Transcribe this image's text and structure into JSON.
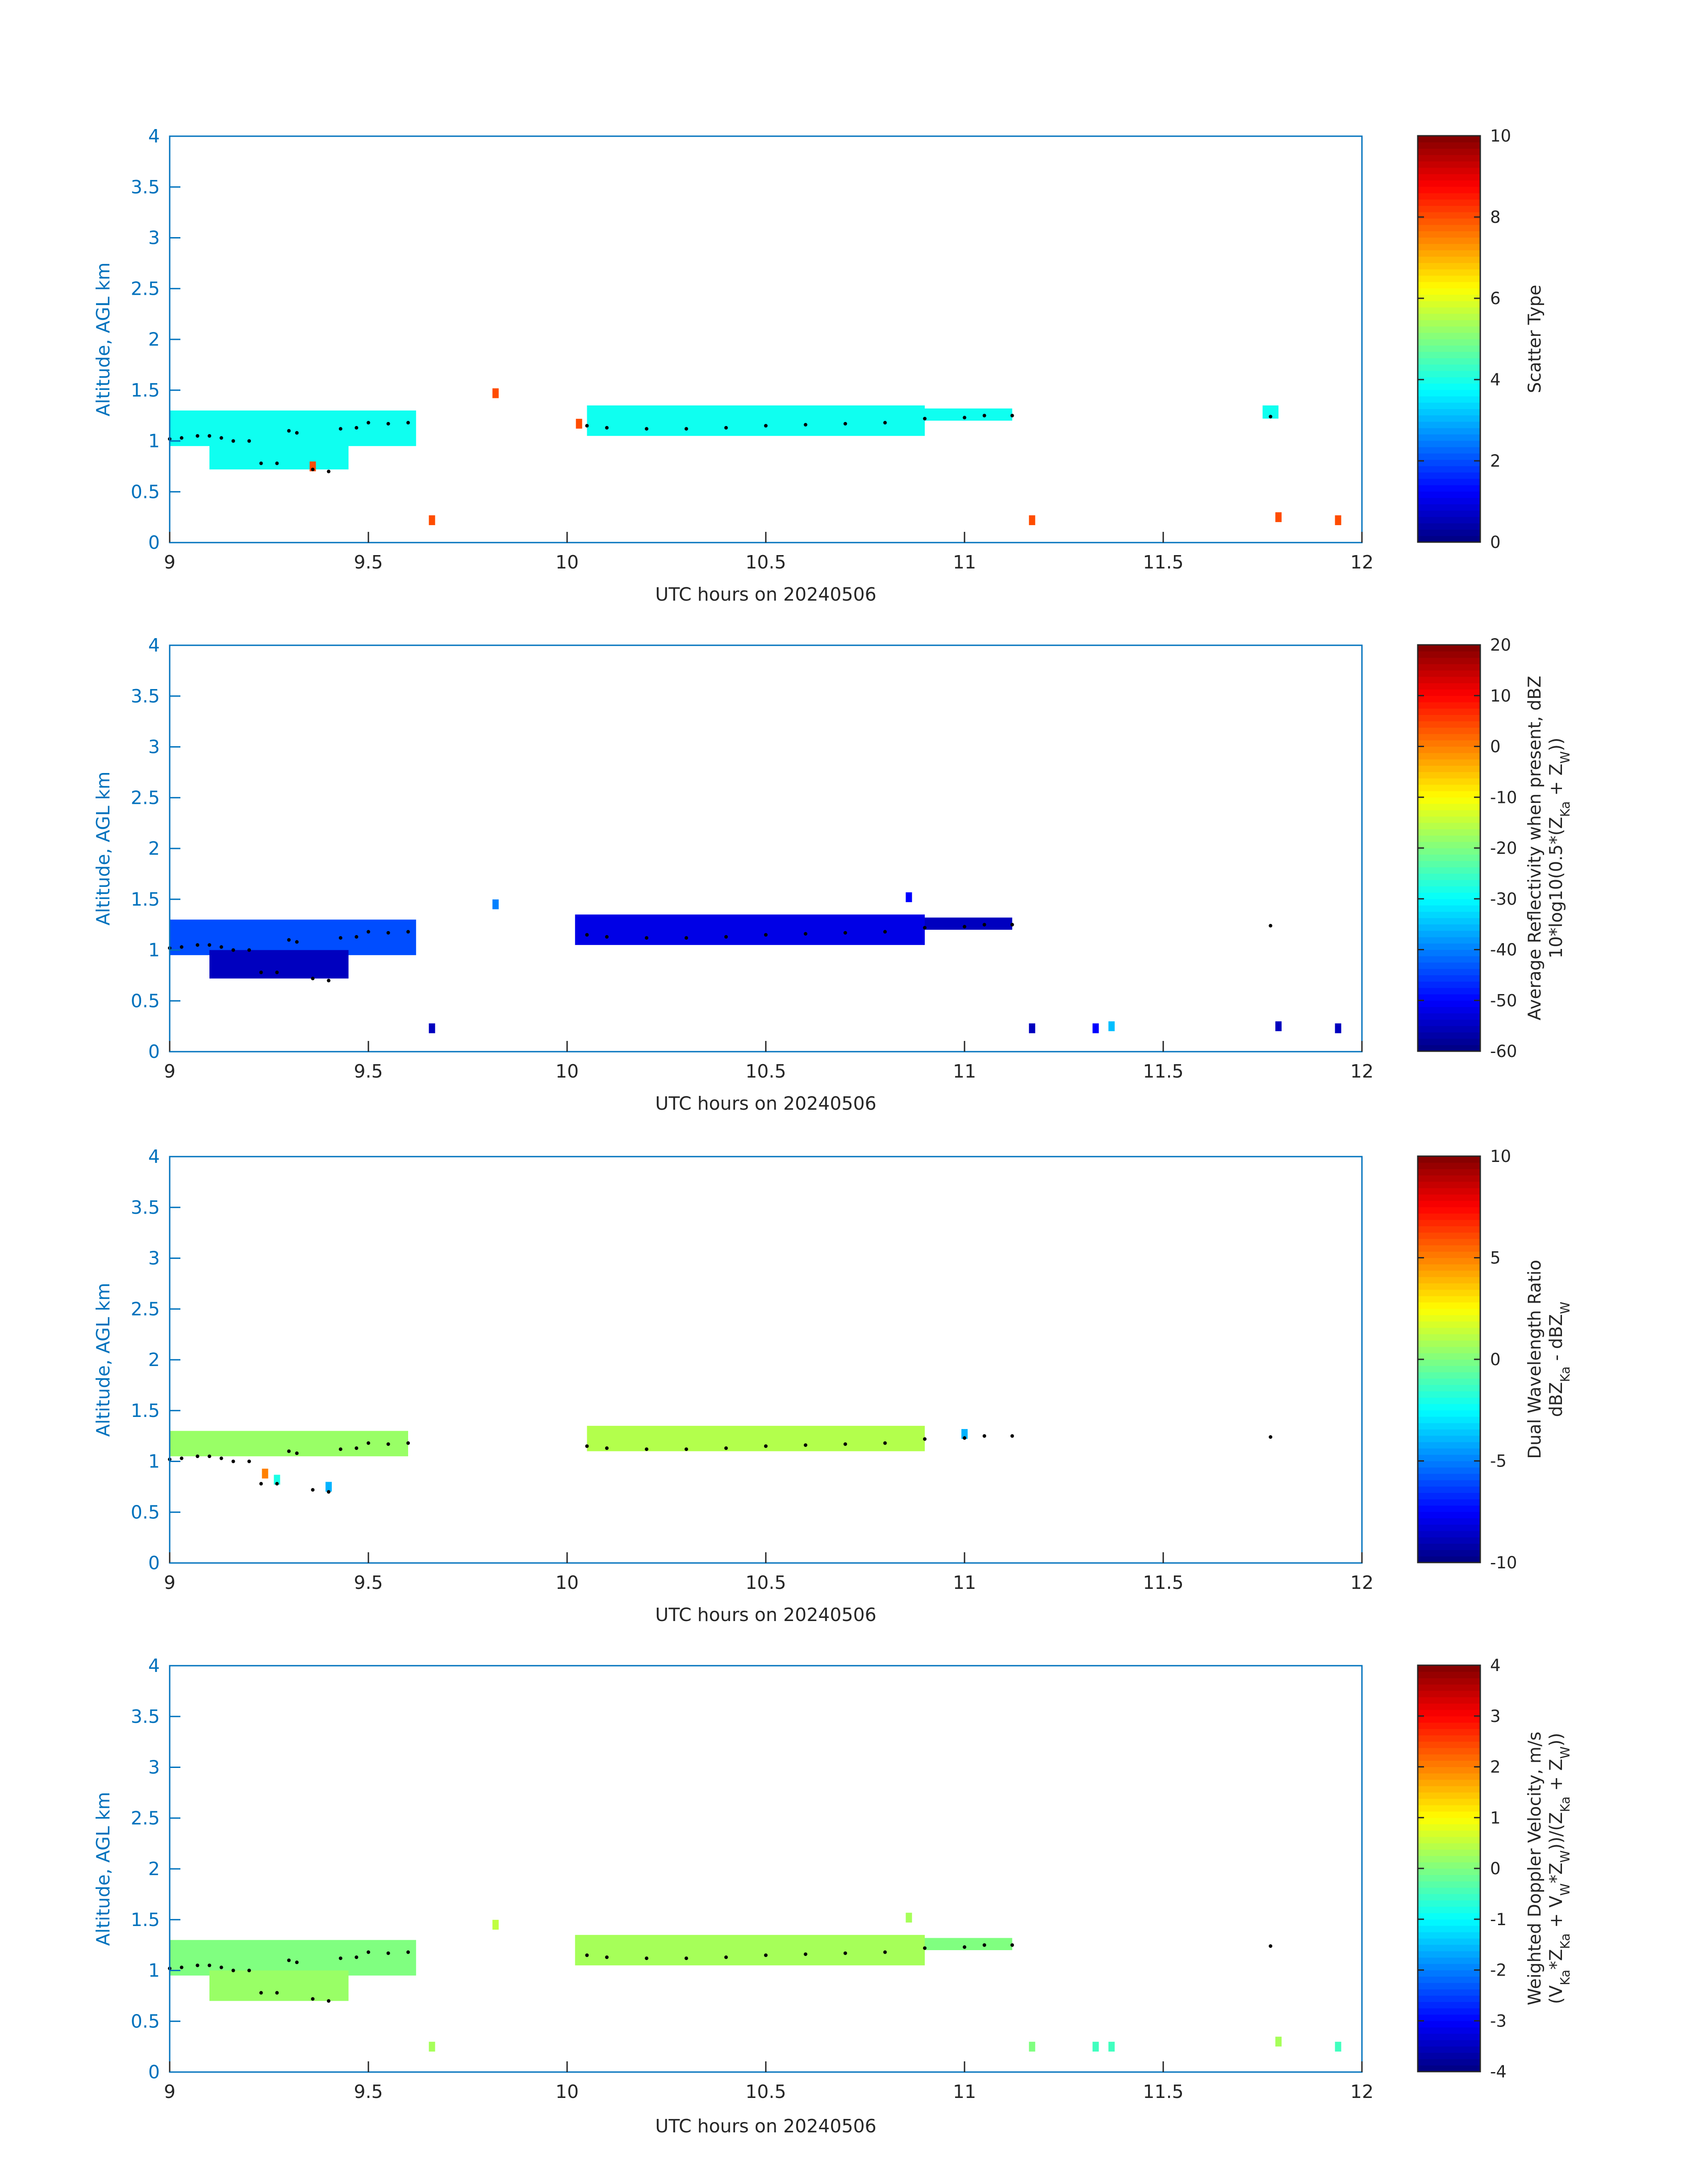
{
  "figure": {
    "common": {
      "xlabel": "UTC hours on 20240506",
      "ylabel": "Altitude, AGL km",
      "x_ticks": [
        "9",
        "9.5",
        "10",
        "10.5",
        "11",
        "11.5",
        "12"
      ],
      "y_ticks": [
        "0",
        "0.5",
        "1",
        "1.5",
        "2",
        "2.5",
        "3",
        "3.5",
        "4"
      ],
      "axis_color": "#0072BD",
      "colormap": "jet"
    }
  },
  "chart_data": [
    {
      "type": "heatmap",
      "xlabel": "UTC hours on 20240506",
      "ylabel": "Altitude, AGL km",
      "xlim": [
        9,
        12
      ],
      "ylim": [
        0,
        4
      ],
      "colorbar": {
        "label_lines": [
          "Scatter Type"
        ],
        "range": [
          0,
          10
        ],
        "ticks": [
          "0",
          "2",
          "4",
          "6",
          "8",
          "10"
        ]
      },
      "regions": [
        {
          "x": [
            9.0,
            9.62
          ],
          "y": [
            0.95,
            1.3
          ],
          "value": 3.9
        },
        {
          "x": [
            9.1,
            9.45
          ],
          "y": [
            0.72,
            1.0
          ],
          "value": 3.9
        },
        {
          "x": [
            10.05,
            10.9
          ],
          "y": [
            1.05,
            1.35
          ],
          "value": 3.9
        },
        {
          "x": [
            10.9,
            11.12
          ],
          "y": [
            1.2,
            1.32
          ],
          "value": 3.9
        },
        {
          "x": [
            11.75,
            11.79
          ],
          "y": [
            1.22,
            1.35
          ],
          "value": 3.9
        }
      ],
      "points": [
        {
          "x": 9.36,
          "y": 0.75,
          "value": 8.0
        },
        {
          "x": 9.66,
          "y": 0.22,
          "value": 8.0
        },
        {
          "x": 9.82,
          "y": 1.47,
          "value": 8.0
        },
        {
          "x": 10.03,
          "y": 1.17,
          "value": 8.0
        },
        {
          "x": 11.17,
          "y": 0.22,
          "value": 8.0
        },
        {
          "x": 11.79,
          "y": 0.25,
          "value": 8.0
        },
        {
          "x": 11.94,
          "y": 0.22,
          "value": 8.0
        }
      ]
    },
    {
      "type": "heatmap",
      "xlabel": "UTC hours on 20240506",
      "ylabel": "Altitude, AGL km",
      "xlim": [
        9,
        12
      ],
      "ylim": [
        0,
        4
      ],
      "colorbar": {
        "label_lines": [
          "Average Reflectivity when present, dBZ",
          "10*log10(0.5*(Z_Ka + Z_W))"
        ],
        "range": [
          -60,
          20
        ],
        "ticks": [
          "-60",
          "-50",
          "-40",
          "-30",
          "-20",
          "-10",
          "0",
          "10",
          "20"
        ]
      },
      "regions": [
        {
          "x": [
            9.0,
            9.62
          ],
          "y": [
            0.95,
            1.3
          ],
          "value": -44
        },
        {
          "x": [
            9.1,
            9.45
          ],
          "y": [
            0.72,
            1.0
          ],
          "value": -55
        },
        {
          "x": [
            10.02,
            10.9
          ],
          "y": [
            1.05,
            1.35
          ],
          "value": -52
        },
        {
          "x": [
            10.9,
            11.12
          ],
          "y": [
            1.2,
            1.32
          ],
          "value": -55
        }
      ],
      "points": [
        {
          "x": 9.66,
          "y": 0.23,
          "value": -55
        },
        {
          "x": 9.82,
          "y": 1.45,
          "value": -40
        },
        {
          "x": 10.86,
          "y": 1.52,
          "value": -50
        },
        {
          "x": 11.17,
          "y": 0.23,
          "value": -55
        },
        {
          "x": 11.33,
          "y": 0.23,
          "value": -50
        },
        {
          "x": 11.37,
          "y": 0.25,
          "value": -35
        },
        {
          "x": 11.79,
          "y": 0.25,
          "value": -55
        },
        {
          "x": 11.94,
          "y": 0.23,
          "value": -55
        }
      ]
    },
    {
      "type": "heatmap",
      "xlabel": "UTC hours on 20240506",
      "ylabel": "Altitude, AGL km",
      "xlim": [
        9,
        12
      ],
      "ylim": [
        0,
        4
      ],
      "colorbar": {
        "label_lines": [
          "Dual Wavelength Ratio",
          "dBZ_Ka - dBZ_W"
        ],
        "range": [
          -10,
          10
        ],
        "ticks": [
          "-10",
          "-5",
          "0",
          "5",
          "10"
        ]
      },
      "regions": [
        {
          "x": [
            9.0,
            9.6
          ],
          "y": [
            1.05,
            1.3
          ],
          "value": 0.5
        },
        {
          "x": [
            10.05,
            10.9
          ],
          "y": [
            1.1,
            1.35
          ],
          "value": 1.0
        }
      ],
      "points": [
        {
          "x": 9.24,
          "y": 0.88,
          "value": 5.0
        },
        {
          "x": 9.27,
          "y": 0.82,
          "value": -2.0
        },
        {
          "x": 9.4,
          "y": 0.75,
          "value": -4.0
        },
        {
          "x": 11.0,
          "y": 1.27,
          "value": -4.0
        }
      ]
    },
    {
      "type": "heatmap",
      "xlabel": "UTC hours on 20240506",
      "ylabel": "Altitude, AGL km",
      "xlim": [
        9,
        12
      ],
      "ylim": [
        0,
        4
      ],
      "colorbar": {
        "label_lines": [
          "Weighted Doppler Velocity, m/s",
          "(V_Ka*Z_Ka + V_W*Z_W))/(Z_Ka + Z_W))"
        ],
        "range": [
          -4,
          4
        ],
        "ticks": [
          "-4",
          "-3",
          "-2",
          "-1",
          "0",
          "1",
          "2",
          "3",
          "4"
        ]
      },
      "regions": [
        {
          "x": [
            9.0,
            9.62
          ],
          "y": [
            0.95,
            1.3
          ],
          "value": 0.0
        },
        {
          "x": [
            9.1,
            9.45
          ],
          "y": [
            0.7,
            1.0
          ],
          "value": 0.2
        },
        {
          "x": [
            10.02,
            10.9
          ],
          "y": [
            1.05,
            1.35
          ],
          "value": 0.3
        },
        {
          "x": [
            10.9,
            11.12
          ],
          "y": [
            1.2,
            1.32
          ],
          "value": 0.0
        }
      ],
      "points": [
        {
          "x": 9.66,
          "y": 0.25,
          "value": 0.3
        },
        {
          "x": 9.82,
          "y": 1.45,
          "value": 0.5
        },
        {
          "x": 10.86,
          "y": 1.52,
          "value": 0.3
        },
        {
          "x": 11.17,
          "y": 0.25,
          "value": 0.0
        },
        {
          "x": 11.33,
          "y": 0.25,
          "value": -0.5
        },
        {
          "x": 11.37,
          "y": 0.25,
          "value": -0.5
        },
        {
          "x": 11.79,
          "y": 0.3,
          "value": 0.3
        },
        {
          "x": 11.94,
          "y": 0.25,
          "value": -0.5
        }
      ]
    }
  ],
  "cloud_base": {
    "x": [
      9.0,
      9.03,
      9.07,
      9.1,
      9.13,
      9.16,
      9.2,
      9.23,
      9.27,
      9.3,
      9.32,
      9.36,
      9.4,
      9.43,
      9.47,
      9.5,
      9.55,
      9.6,
      10.05,
      10.1,
      10.2,
      10.3,
      10.4,
      10.5,
      10.6,
      10.7,
      10.8,
      10.9,
      11.0,
      11.05,
      11.12,
      11.77
    ],
    "y": [
      1.02,
      1.03,
      1.05,
      1.05,
      1.03,
      1.0,
      1.0,
      0.78,
      0.78,
      1.1,
      1.08,
      0.72,
      0.7,
      1.12,
      1.13,
      1.18,
      1.17,
      1.18,
      1.15,
      1.13,
      1.12,
      1.12,
      1.13,
      1.15,
      1.16,
      1.17,
      1.18,
      1.22,
      1.23,
      1.25,
      1.25,
      1.24
    ]
  }
}
